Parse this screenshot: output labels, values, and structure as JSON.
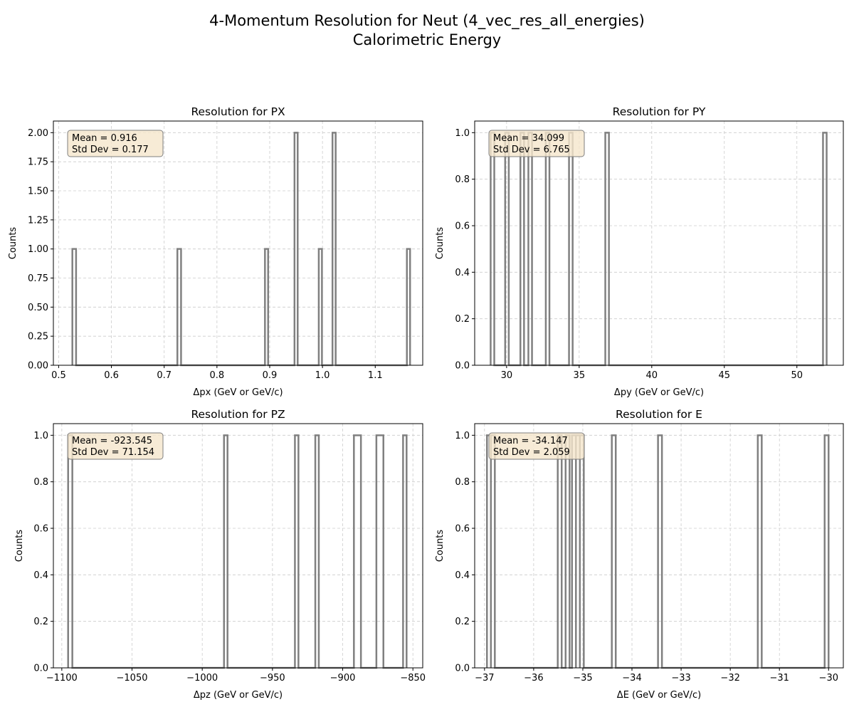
{
  "figure": {
    "title_line1": "4-Momentum Resolution for Neut (4_vec_res_all_energies)",
    "title_line2": "Calorimetric Energy",
    "colors": {
      "histogram_edge": "#808080",
      "grid": "#cccccc",
      "stats_box_fill": "#f5e6cc",
      "stats_box_edge": "#7f7f7f"
    }
  },
  "chart_data": [
    {
      "type": "bar",
      "histtype": "step",
      "title": "Resolution for PX",
      "xlabel": "Δpx (GeV or GeV/c)",
      "ylabel": "Counts",
      "xlim": [
        0.49,
        1.19
      ],
      "ylim": [
        0,
        2.1
      ],
      "xticks": [
        0.5,
        0.6,
        0.7,
        0.8,
        0.9,
        1.0,
        1.1
      ],
      "xtick_labels": [
        "0.5",
        "0.6",
        "0.7",
        "0.8",
        "0.9",
        "1.0",
        "1.1"
      ],
      "yticks": [
        0,
        0.25,
        0.5,
        0.75,
        1.0,
        1.25,
        1.5,
        1.75,
        2.0
      ],
      "ytick_labels": [
        "0.00",
        "0.25",
        "0.50",
        "0.75",
        "1.00",
        "1.25",
        "1.50",
        "1.75",
        "2.00"
      ],
      "bins": [
        {
          "x0": 0.526,
          "x1": 0.533,
          "count": 1
        },
        {
          "x0": 0.725,
          "x1": 0.732,
          "count": 1
        },
        {
          "x0": 0.891,
          "x1": 0.897,
          "count": 1
        },
        {
          "x0": 0.947,
          "x1": 0.953,
          "count": 2
        },
        {
          "x0": 0.993,
          "x1": 0.999,
          "count": 1
        },
        {
          "x0": 1.019,
          "x1": 1.025,
          "count": 2
        },
        {
          "x0": 1.16,
          "x1": 1.166,
          "count": 1
        }
      ],
      "stats": {
        "mean": "Mean = 0.916",
        "std": "Std Dev = 0.177"
      },
      "grid": true
    },
    {
      "type": "bar",
      "histtype": "step",
      "title": "Resolution for PY",
      "xlabel": "Δpy (GeV or GeV/c)",
      "ylabel": "Counts",
      "xlim": [
        27.8,
        53.2
      ],
      "ylim": [
        0,
        1.05
      ],
      "xticks": [
        30,
        35,
        40,
        45,
        50
      ],
      "xtick_labels": [
        "30",
        "35",
        "40",
        "45",
        "50"
      ],
      "yticks": [
        0,
        0.2,
        0.4,
        0.6,
        0.8,
        1.0
      ],
      "ytick_labels": [
        "0.0",
        "0.2",
        "0.4",
        "0.6",
        "0.8",
        "1.0"
      ],
      "bins": [
        {
          "x0": 28.9,
          "x1": 29.15,
          "count": 1
        },
        {
          "x0": 29.9,
          "x1": 30.15,
          "count": 1
        },
        {
          "x0": 30.95,
          "x1": 31.2,
          "count": 1
        },
        {
          "x0": 31.5,
          "x1": 31.75,
          "count": 1
        },
        {
          "x0": 32.7,
          "x1": 32.95,
          "count": 1
        },
        {
          "x0": 34.3,
          "x1": 34.55,
          "count": 1
        },
        {
          "x0": 36.8,
          "x1": 37.05,
          "count": 1
        },
        {
          "x0": 51.8,
          "x1": 52.05,
          "count": 1
        }
      ],
      "stats": {
        "mean": "Mean = 34.099",
        "std": "Std Dev = 6.765"
      },
      "grid": true
    },
    {
      "type": "bar",
      "histtype": "step",
      "title": "Resolution for PZ",
      "xlabel": "Δpz (GeV or GeV/c)",
      "ylabel": "Counts",
      "xlim": [
        -1106,
        -843
      ],
      "ylim": [
        0,
        1.05
      ],
      "xticks": [
        -1100,
        -1050,
        -1000,
        -950,
        -900,
        -850
      ],
      "xtick_labels": [
        "−1100",
        "−1050",
        "−1000",
        "−950",
        "−900",
        "−850"
      ],
      "yticks": [
        0,
        0.2,
        0.4,
        0.6,
        0.8,
        1.0
      ],
      "ytick_labels": [
        "0.0",
        "0.2",
        "0.4",
        "0.6",
        "0.8",
        "1.0"
      ],
      "bins": [
        {
          "x0": -1095.5,
          "x1": -1092.5,
          "count": 1
        },
        {
          "x0": -984.5,
          "x1": -982,
          "count": 1
        },
        {
          "x0": -934,
          "x1": -931.5,
          "count": 1
        },
        {
          "x0": -919.5,
          "x1": -917,
          "count": 1
        },
        {
          "x0": -892,
          "x1": -887,
          "count": 1
        },
        {
          "x0": -876,
          "x1": -871,
          "count": 1
        },
        {
          "x0": -857,
          "x1": -854.5,
          "count": 1
        }
      ],
      "stats": {
        "mean": "Mean = -923.545",
        "std": "Std Dev = 71.154"
      },
      "grid": true
    },
    {
      "type": "bar",
      "histtype": "step",
      "title": "Resolution for E",
      "xlabel": "ΔE (GeV or GeV/c)",
      "ylabel": "Counts",
      "xlim": [
        -37.2,
        -29.7
      ],
      "ylim": [
        0,
        1.05
      ],
      "xticks": [
        -37,
        -36,
        -35,
        -34,
        -33,
        -32,
        -31,
        -30
      ],
      "xtick_labels": [
        "−37",
        "−36",
        "−35",
        "−34",
        "−33",
        "−32",
        "−31",
        "−30"
      ],
      "yticks": [
        0,
        0.2,
        0.4,
        0.6,
        0.8,
        1.0
      ],
      "ytick_labels": [
        "0.0",
        "0.2",
        "0.4",
        "0.6",
        "0.8",
        "1.0"
      ],
      "bins": [
        {
          "x0": -36.95,
          "x1": -36.87,
          "count": 1
        },
        {
          "x0": -36.87,
          "x1": -36.79,
          "count": 1
        },
        {
          "x0": -35.51,
          "x1": -35.43,
          "count": 1
        },
        {
          "x0": -35.35,
          "x1": -35.27,
          "count": 1
        },
        {
          "x0": -35.22,
          "x1": -35.14,
          "count": 1
        },
        {
          "x0": -35.14,
          "x1": -35.06,
          "count": 1
        },
        {
          "x0": -35.06,
          "x1": -34.98,
          "count": 1
        },
        {
          "x0": -34.41,
          "x1": -34.33,
          "count": 1
        },
        {
          "x0": -33.47,
          "x1": -33.39,
          "count": 1
        },
        {
          "x0": -31.44,
          "x1": -31.36,
          "count": 1
        },
        {
          "x0": -30.08,
          "x1": -30.0,
          "count": 1
        }
      ],
      "stats": {
        "mean": "Mean = -34.147",
        "std": "Std Dev = 2.059"
      },
      "grid": true
    }
  ]
}
